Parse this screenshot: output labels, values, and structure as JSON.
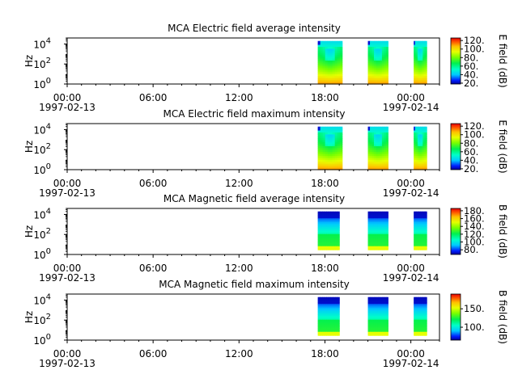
{
  "chart_data": [
    {
      "type": "heatmap",
      "title": "MCA  Electric field average intensity",
      "ylabel": "Hz",
      "y_scale": "log",
      "ylim": [
        1,
        40000
      ],
      "y_ticks": [
        {
          "exp": "0"
        },
        {
          "exp": "2"
        },
        {
          "exp": "4"
        }
      ],
      "x_ticks": [
        "00:00",
        "06:00",
        "12:00",
        "18:00",
        "00:00"
      ],
      "x_dates": [
        "1997-02-13",
        "1997-02-14"
      ],
      "xlim_hours": [
        0,
        26
      ],
      "data_blocks_hours": [
        [
          17.5,
          19.2
        ],
        [
          21.0,
          22.4
        ],
        [
          24.2,
          25.1
        ]
      ],
      "freq_range_hz": [
        1,
        20000
      ],
      "style": "electric",
      "colorbar": {
        "label": "E field (dB)",
        "range": [
          18,
          126
        ],
        "ticks": [
          "20.",
          "40.",
          "60.",
          "80.",
          "100.",
          "120."
        ],
        "tick_values": [
          20,
          40,
          60,
          80,
          100,
          120
        ]
      }
    },
    {
      "type": "heatmap",
      "title": "MCA  Electric field maximum intensity",
      "ylabel": "Hz",
      "y_scale": "log",
      "ylim": [
        1,
        40000
      ],
      "y_ticks": [
        {
          "exp": "0"
        },
        {
          "exp": "2"
        },
        {
          "exp": "4"
        }
      ],
      "x_ticks": [
        "00:00",
        "06:00",
        "12:00",
        "18:00",
        "00:00"
      ],
      "x_dates": [
        "1997-02-13",
        "1997-02-14"
      ],
      "xlim_hours": [
        0,
        26
      ],
      "data_blocks_hours": [
        [
          17.5,
          19.2
        ],
        [
          21.0,
          22.4
        ],
        [
          24.2,
          25.1
        ]
      ],
      "freq_range_hz": [
        1,
        20000
      ],
      "style": "electric",
      "colorbar": {
        "label": "E field (dB)",
        "range": [
          18,
          126
        ],
        "ticks": [
          "20.",
          "40.",
          "60.",
          "80.",
          "100.",
          "120."
        ],
        "tick_values": [
          20,
          40,
          60,
          80,
          100,
          120
        ]
      }
    },
    {
      "type": "heatmap",
      "title": "MCA  Magnetic field average intensity",
      "ylabel": "Hz",
      "y_scale": "log",
      "ylim": [
        1,
        40000
      ],
      "y_ticks": [
        {
          "exp": "0"
        },
        {
          "exp": "2"
        },
        {
          "exp": "4"
        }
      ],
      "x_ticks": [
        "00:00",
        "06:00",
        "12:00",
        "18:00",
        "00:00"
      ],
      "x_dates": [
        "1997-02-13",
        "1997-02-14"
      ],
      "xlim_hours": [
        0,
        26
      ],
      "data_blocks_hours": [
        [
          17.5,
          19.0
        ],
        [
          21.0,
          22.4
        ],
        [
          24.2,
          25.1
        ]
      ],
      "freq_range_hz": [
        3,
        20000
      ],
      "style": "magnetic",
      "colorbar": {
        "label": "B field (dB)",
        "range": [
          68,
          186
        ],
        "ticks": [
          "80.",
          "100.",
          "120.",
          "140.",
          "160.",
          "180."
        ],
        "tick_values": [
          80,
          100,
          120,
          140,
          160,
          180
        ]
      }
    },
    {
      "type": "heatmap",
      "title": "MCA  Magnetic field maximum intensity",
      "ylabel": "Hz",
      "y_scale": "log",
      "ylim": [
        1,
        40000
      ],
      "y_ticks": [
        {
          "exp": "0"
        },
        {
          "exp": "2"
        },
        {
          "exp": "4"
        }
      ],
      "x_ticks": [
        "00:00",
        "06:00",
        "12:00",
        "18:00",
        "00:00"
      ],
      "x_dates": [
        "1997-02-13",
        "1997-02-14"
      ],
      "xlim_hours": [
        0,
        26
      ],
      "data_blocks_hours": [
        [
          17.5,
          19.0
        ],
        [
          21.0,
          22.4
        ],
        [
          24.2,
          25.1
        ]
      ],
      "freq_range_hz": [
        3,
        20000
      ],
      "style": "magnetic",
      "colorbar": {
        "label": "B field (dB)",
        "range": [
          65,
          190
        ],
        "ticks": [
          "100.",
          "150."
        ],
        "tick_values": [
          100,
          150
        ]
      }
    }
  ]
}
